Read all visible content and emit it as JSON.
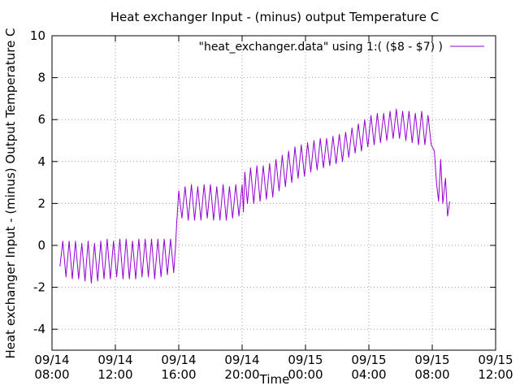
{
  "chart_data": {
    "type": "line",
    "title": "Heat exchanger Input - (minus) output Temperature C",
    "xlabel": "Time",
    "ylabel": "Heat exchanger Input - (minus) Output Temperature C",
    "ylim": [
      -5,
      10
    ],
    "y_ticks": [
      "10",
      "8",
      "6",
      "4",
      "2",
      "0",
      "-2",
      "-4"
    ],
    "xlim": [
      "09/14 08:00",
      "09/15 12:00"
    ],
    "x_ticks": [
      {
        "date": "09/14",
        "time": "08:00"
      },
      {
        "date": "09/14",
        "time": "12:00"
      },
      {
        "date": "09/14",
        "time": "16:00"
      },
      {
        "date": "09/14",
        "time": "20:00"
      },
      {
        "date": "09/15",
        "time": "00:00"
      },
      {
        "date": "09/15",
        "time": "04:00"
      },
      {
        "date": "09/15",
        "time": "08:00"
      },
      {
        "date": "09/15",
        "time": "12:00"
      }
    ],
    "grid": true,
    "legend_position": "top-right",
    "series": [
      {
        "name": "\"heat_exchanger.data\" using 1:( ($8 - $7) )",
        "color": "#9400d3",
        "points": [
          [
            "09/14 08:30",
            -1.0
          ],
          [
            "09/14 08:41",
            0.2
          ],
          [
            "09/14 08:53",
            -1.5
          ],
          [
            "09/14 09:05",
            0.2
          ],
          [
            "09/14 09:17",
            -1.6
          ],
          [
            "09/14 09:29",
            0.2
          ],
          [
            "09/14 09:41",
            -1.6
          ],
          [
            "09/14 09:53",
            0.1
          ],
          [
            "09/14 10:05",
            -1.7
          ],
          [
            "09/14 10:17",
            0.2
          ],
          [
            "09/14 10:29",
            -1.8
          ],
          [
            "09/14 10:41",
            0.1
          ],
          [
            "09/14 10:53",
            -1.7
          ],
          [
            "09/14 11:05",
            0.2
          ],
          [
            "09/14 11:17",
            -1.6
          ],
          [
            "09/14 11:29",
            0.3
          ],
          [
            "09/14 11:41",
            -1.6
          ],
          [
            "09/14 11:53",
            0.2
          ],
          [
            "09/14 12:05",
            -1.5
          ],
          [
            "09/14 12:17",
            0.3
          ],
          [
            "09/14 12:29",
            -1.6
          ],
          [
            "09/14 12:41",
            0.3
          ],
          [
            "09/14 12:53",
            -1.6
          ],
          [
            "09/14 13:05",
            0.2
          ],
          [
            "09/14 13:17",
            -1.6
          ],
          [
            "09/14 13:29",
            0.3
          ],
          [
            "09/14 13:41",
            -1.5
          ],
          [
            "09/14 13:53",
            0.3
          ],
          [
            "09/14 14:05",
            -1.5
          ],
          [
            "09/14 14:17",
            0.3
          ],
          [
            "09/14 14:29",
            -1.6
          ],
          [
            "09/14 14:41",
            0.3
          ],
          [
            "09/14 14:53",
            -1.5
          ],
          [
            "09/14 15:05",
            0.3
          ],
          [
            "09/14 15:17",
            -1.4
          ],
          [
            "09/14 15:29",
            0.3
          ],
          [
            "09/14 15:41",
            -1.3
          ],
          [
            "09/14 15:48",
            0.0
          ],
          [
            "09/14 15:52",
            1.0
          ],
          [
            "09/14 16:00",
            2.6
          ],
          [
            "09/14 16:12",
            1.3
          ],
          [
            "09/14 16:24",
            2.8
          ],
          [
            "09/14 16:36",
            1.2
          ],
          [
            "09/14 16:48",
            2.9
          ],
          [
            "09/14 17:00",
            1.2
          ],
          [
            "09/14 17:12",
            2.8
          ],
          [
            "09/14 17:24",
            1.2
          ],
          [
            "09/14 17:36",
            2.9
          ],
          [
            "09/14 17:48",
            1.3
          ],
          [
            "09/14 18:00",
            2.9
          ],
          [
            "09/14 18:12",
            1.2
          ],
          [
            "09/14 18:24",
            2.8
          ],
          [
            "09/14 18:36",
            1.2
          ],
          [
            "09/14 18:48",
            2.9
          ],
          [
            "09/14 19:00",
            1.2
          ],
          [
            "09/14 19:12",
            2.8
          ],
          [
            "09/14 19:24",
            1.3
          ],
          [
            "09/14 19:36",
            2.9
          ],
          [
            "09/14 19:48",
            1.4
          ],
          [
            "09/14 20:00",
            2.9
          ],
          [
            "09/14 20:05",
            1.6
          ],
          [
            "09/14 20:10",
            3.5
          ],
          [
            "09/14 20:20",
            2.0
          ],
          [
            "09/14 20:32",
            3.7
          ],
          [
            "09/14 20:44",
            2.0
          ],
          [
            "09/14 20:56",
            3.8
          ],
          [
            "09/14 21:08",
            2.1
          ],
          [
            "09/14 21:20",
            3.8
          ],
          [
            "09/14 21:32",
            2.2
          ],
          [
            "09/14 21:44",
            3.9
          ],
          [
            "09/14 21:56",
            2.3
          ],
          [
            "09/14 22:08",
            4.1
          ],
          [
            "09/14 22:20",
            2.6
          ],
          [
            "09/14 22:32",
            4.3
          ],
          [
            "09/14 22:44",
            2.8
          ],
          [
            "09/14 22:56",
            4.5
          ],
          [
            "09/14 23:08",
            3.0
          ],
          [
            "09/14 23:20",
            4.7
          ],
          [
            "09/14 23:32",
            3.2
          ],
          [
            "09/14 23:44",
            4.8
          ],
          [
            "09/14 23:56",
            3.3
          ],
          [
            "09/15 00:08",
            4.9
          ],
          [
            "09/15 00:20",
            3.5
          ],
          [
            "09/15 00:32",
            5.0
          ],
          [
            "09/15 00:44",
            3.6
          ],
          [
            "09/15 00:56",
            5.1
          ],
          [
            "09/15 01:08",
            3.7
          ],
          [
            "09/15 01:20",
            5.1
          ],
          [
            "09/15 01:32",
            3.8
          ],
          [
            "09/15 01:44",
            5.2
          ],
          [
            "09/15 01:56",
            3.9
          ],
          [
            "09/15 02:08",
            5.3
          ],
          [
            "09/15 02:20",
            4.0
          ],
          [
            "09/15 02:32",
            5.4
          ],
          [
            "09/15 02:44",
            4.2
          ],
          [
            "09/15 02:56",
            5.6
          ],
          [
            "09/15 03:08",
            4.4
          ],
          [
            "09/15 03:20",
            5.8
          ],
          [
            "09/15 03:32",
            4.5
          ],
          [
            "09/15 03:44",
            6.0
          ],
          [
            "09/15 03:56",
            4.7
          ],
          [
            "09/15 04:08",
            6.2
          ],
          [
            "09/15 04:20",
            4.8
          ],
          [
            "09/15 04:32",
            6.3
          ],
          [
            "09/15 04:44",
            4.9
          ],
          [
            "09/15 04:56",
            6.3
          ],
          [
            "09/15 05:08",
            5.0
          ],
          [
            "09/15 05:20",
            6.4
          ],
          [
            "09/15 05:32",
            5.1
          ],
          [
            "09/15 05:44",
            6.5
          ],
          [
            "09/15 05:56",
            5.1
          ],
          [
            "09/15 06:08",
            6.4
          ],
          [
            "09/15 06:20",
            5.0
          ],
          [
            "09/15 06:32",
            6.4
          ],
          [
            "09/15 06:44",
            4.9
          ],
          [
            "09/15 06:56",
            6.3
          ],
          [
            "09/15 07:08",
            4.8
          ],
          [
            "09/15 07:20",
            6.4
          ],
          [
            "09/15 07:32",
            4.8
          ],
          [
            "09/15 07:44",
            6.2
          ],
          [
            "09/15 07:56",
            4.8
          ],
          [
            "09/15 08:08",
            4.5
          ],
          [
            "09/15 08:16",
            3.0
          ],
          [
            "09/15 08:24",
            2.1
          ],
          [
            "09/15 08:32",
            4.1
          ],
          [
            "09/15 08:40",
            2.0
          ],
          [
            "09/15 08:50",
            3.2
          ],
          [
            "09/15 08:58",
            1.4
          ],
          [
            "09/15 09:06",
            2.1
          ]
        ]
      }
    ]
  }
}
